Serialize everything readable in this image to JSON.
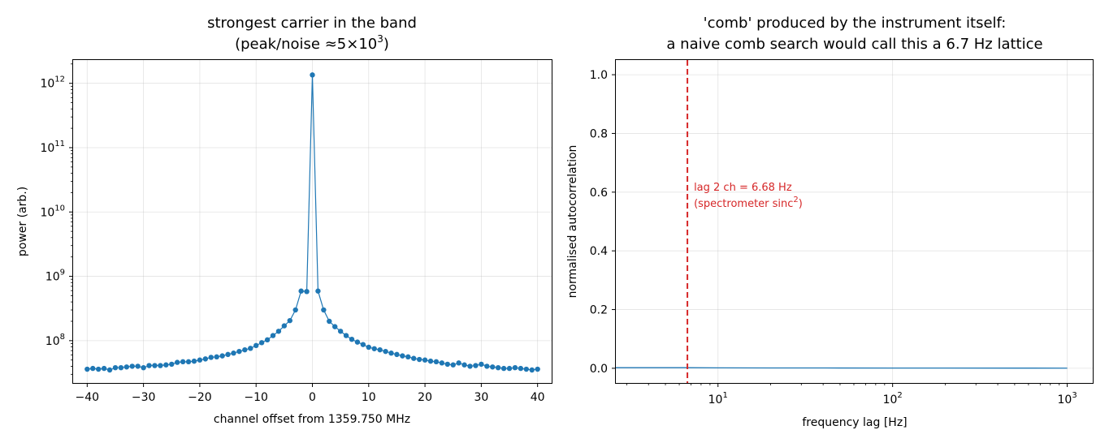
{
  "chart_data": [
    {
      "type": "line",
      "title_line1": "strongest carrier in the band",
      "title_line2_prefix": "(peak/noise ",
      "title_line2_math": "≈5×10",
      "title_line2_exp": "3",
      "title_line2_suffix": ")",
      "xlabel": "channel offset from 1359.750 MHz",
      "ylabel": "power (arb.)",
      "yscale": "log",
      "xlim": [
        -42.5,
        42.5
      ],
      "ylim": [
        22000000.0,
        2300000000000.0
      ],
      "grid": true,
      "xticks": [
        -40,
        -30,
        -20,
        -10,
        0,
        10,
        20,
        30,
        40
      ],
      "xtick_labels": [
        "−40",
        "−30",
        "−20",
        "−10",
        "0",
        "10",
        "20",
        "30",
        "40"
      ],
      "yticks": [
        {
          "value": 100000000.0,
          "base": "10",
          "exp": "8"
        },
        {
          "value": 1000000000.0,
          "base": "10",
          "exp": "9"
        },
        {
          "value": 10000000000.0,
          "base": "10",
          "exp": "10"
        },
        {
          "value": 100000000000.0,
          "base": "10",
          "exp": "11"
        },
        {
          "value": 1000000000000.0,
          "base": "10",
          "exp": "12"
        }
      ],
      "color": "#1f77b4",
      "series": [
        {
          "x": [
            -40,
            -39,
            -38,
            -37,
            -36,
            -35,
            -34,
            -33,
            -32,
            -31,
            -30,
            -29,
            -28,
            -27,
            -26,
            -25,
            -24,
            -23,
            -22,
            -21,
            -20,
            -19,
            -18,
            -17,
            -16,
            -15,
            -14,
            -13,
            -12,
            -11,
            -10,
            -9,
            -8,
            -7,
            -6,
            -5,
            -4,
            -3,
            -2,
            -1,
            0,
            1,
            2,
            3,
            4,
            5,
            6,
            7,
            8,
            9,
            10,
            11,
            12,
            13,
            14,
            15,
            16,
            17,
            18,
            19,
            20,
            21,
            22,
            23,
            24,
            25,
            26,
            27,
            28,
            29,
            30,
            31,
            32,
            33,
            34,
            35,
            36,
            37,
            38,
            39,
            40
          ],
          "y": [
            36000000.0,
            37000000.0,
            36000000.0,
            37000000.0,
            35000000.0,
            38000000.0,
            38000000.0,
            39000000.0,
            40000000.0,
            40000000.0,
            38000000.0,
            41000000.0,
            41000000.0,
            41000000.0,
            42000000.0,
            43000000.0,
            46000000.0,
            47000000.0,
            47000000.0,
            48000000.0,
            50000000.0,
            52000000.0,
            55000000.0,
            56000000.0,
            58000000.0,
            61000000.0,
            64000000.0,
            68000000.0,
            72000000.0,
            76000000.0,
            84000000.0,
            93000000.0,
            103000000.0,
            120000000.0,
            140000000.0,
            170000000.0,
            205000000.0,
            300000000.0,
            590000000.0,
            580000000.0,
            1350000000000.0,
            590000000.0,
            300000000.0,
            200000000.0,
            165000000.0,
            140000000.0,
            120000000.0,
            105000000.0,
            95000000.0,
            87000000.0,
            79000000.0,
            75000000.0,
            72000000.0,
            68000000.0,
            64000000.0,
            61000000.0,
            58000000.0,
            56000000.0,
            53000000.0,
            51000000.0,
            50000000.0,
            48000000.0,
            47000000.0,
            45000000.0,
            43000000.0,
            42000000.0,
            45000000.0,
            42000000.0,
            40000000.0,
            41000000.0,
            43000000.0,
            40000000.0,
            39000000.0,
            38000000.0,
            37000000.0,
            37000000.0,
            38000000.0,
            37000000.0,
            36000000.0,
            35000000.0,
            36000000.0
          ]
        }
      ]
    },
    {
      "type": "line",
      "title_line1": "'comb' produced by the instrument itself:",
      "title_line2": "a naive comb search would call this a 6.7 Hz lattice",
      "xlabel": "frequency lag [Hz]",
      "ylabel": "normalised autocorrelation",
      "xscale": "log",
      "xlim": [
        2.6,
        1400
      ],
      "ylim": [
        -0.05,
        1.05
      ],
      "grid": true,
      "yticks": [
        0.0,
        0.2,
        0.4,
        0.6,
        0.8,
        1.0
      ],
      "ytick_labels": [
        "0.0",
        "0.2",
        "0.4",
        "0.6",
        "0.8",
        "1.0"
      ],
      "xticks": [
        {
          "value": 10,
          "base": "10",
          "exp": "1"
        },
        {
          "value": 100,
          "base": "10",
          "exp": "2"
        },
        {
          "value": 1000,
          "base": "10",
          "exp": "3"
        }
      ],
      "color": "#1f77b4",
      "series": [
        {
          "x": [
            2.5,
            3.34,
            6.68,
            10,
            20,
            50,
            100,
            200,
            500,
            1000
          ],
          "y": [
            0.002,
            0.002,
            0.002,
            0.0015,
            0.0012,
            0.001,
            0.0008,
            0.0007,
            0.0006,
            0.0005
          ]
        }
      ],
      "vline": {
        "x": 6.68,
        "color": "#d62728",
        "style": "dashed",
        "label_line1": "lag 2 ch = 6.68 Hz",
        "label_line2_prefix": "(spectrometer sinc",
        "label_line2_exp": "2",
        "label_line2_suffix": ")"
      }
    }
  ]
}
